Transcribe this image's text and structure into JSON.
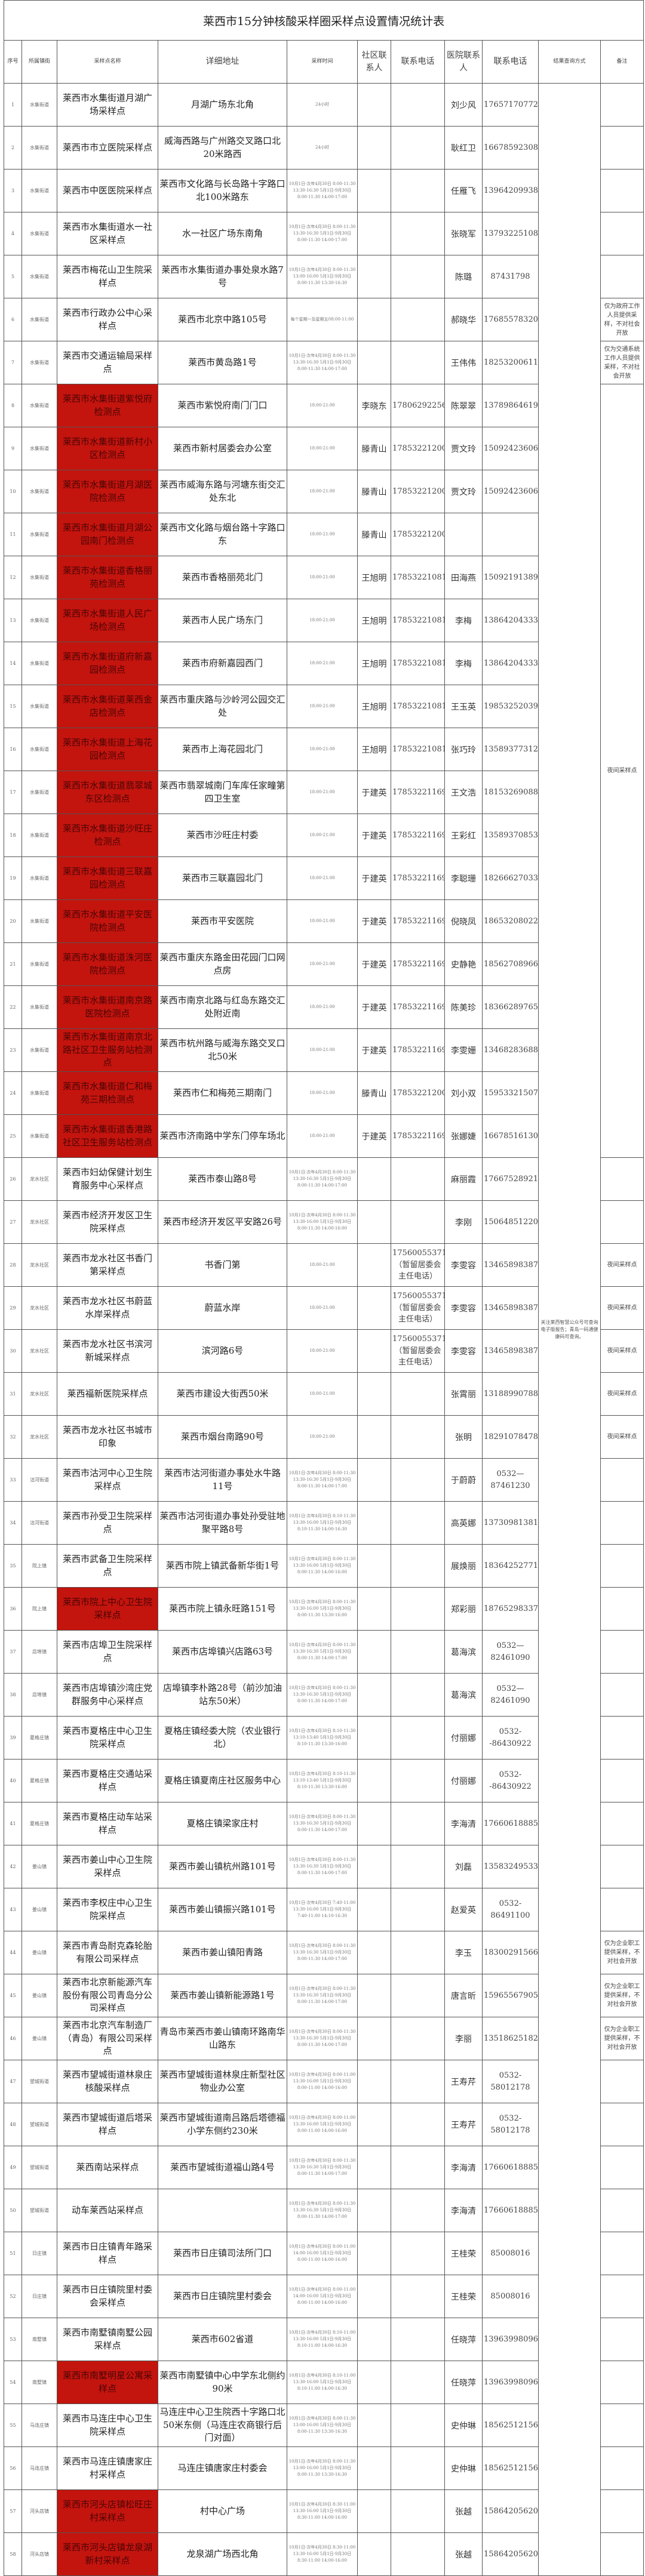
{
  "title": "莱西市15分钟核酸采样圈采样点设置情况统计表",
  "headers": [
    "序号",
    "所属镇街",
    "采样点名称",
    "详细地址",
    "采样时间",
    "社区联系人",
    "联系电话",
    "医院联系人",
    "联系电话",
    "结果查询方式",
    "备注"
  ],
  "colors": {
    "highlight_red": "#c4140e"
  },
  "query_method": "关注莱西智慧公众号可查询电子版报告；青岛一码通健康码可查询。",
  "remarks": [
    {
      "span": 1,
      "text": ""
    },
    {
      "span": 1,
      "text": ""
    },
    {
      "span": 1,
      "text": ""
    },
    {
      "span": 1,
      "text": ""
    },
    {
      "span": 1,
      "text": ""
    },
    {
      "span": 1,
      "text": "仅为政府工作人员提供采样，不对社会开放"
    },
    {
      "span": 1,
      "text": "仅为交通系统工作人员提供采样，不对社会开放"
    },
    {
      "span": 18,
      "text": "夜间采样点"
    },
    {
      "span": 1,
      "text": ""
    },
    {
      "span": 1,
      "text": ""
    },
    {
      "span": 1,
      "text": "夜间采样点"
    },
    {
      "span": 1,
      "text": "夜间采样点"
    },
    {
      "span": 1,
      "text": "夜间采样点"
    },
    {
      "span": 1,
      "text": "夜间采样点"
    },
    {
      "span": 1,
      "text": "夜间采样点"
    },
    {
      "span": 1,
      "text": ""
    },
    {
      "span": 1,
      "text": ""
    },
    {
      "span": 1,
      "text": ""
    },
    {
      "span": 1,
      "text": ""
    },
    {
      "span": 1,
      "text": ""
    },
    {
      "span": 1,
      "text": ""
    },
    {
      "span": 1,
      "text": ""
    },
    {
      "span": 1,
      "text": ""
    },
    {
      "span": 1,
      "text": ""
    },
    {
      "span": 1,
      "text": ""
    },
    {
      "span": 1,
      "text": ""
    },
    {
      "span": 1,
      "text": "仅为企业职工提供采样，不对社会开放"
    },
    {
      "span": 1,
      "text": "仅为企业职工提供采样，不对社会开放"
    },
    {
      "span": 1,
      "text": "仅为企业职工提供采样，不对社会开放"
    },
    {
      "span": 1,
      "text": ""
    },
    {
      "span": 1,
      "text": ""
    },
    {
      "span": 1,
      "text": ""
    },
    {
      "span": 1,
      "text": ""
    },
    {
      "span": 1,
      "text": ""
    },
    {
      "span": 1,
      "text": ""
    },
    {
      "span": 1,
      "text": ""
    },
    {
      "span": 1,
      "text": ""
    },
    {
      "span": 1,
      "text": ""
    },
    {
      "span": 1,
      "text": ""
    },
    {
      "span": 1,
      "text": ""
    },
    {
      "span": 1,
      "text": ""
    }
  ],
  "rows": [
    {
      "no": "1",
      "town": "水集街道",
      "name": "莱西市水集街道月湖广场采样点",
      "addr": "月湖广场东北角",
      "time": "24小时",
      "cc": "",
      "cphone": "",
      "hc": "刘少风",
      "hphone": "17657170772",
      "red": false
    },
    {
      "no": "2",
      "town": "水集街道",
      "name": "莱西市市立医院采样点",
      "addr": "威海西路与广州路交叉路口北20米路西",
      "time": "24小时",
      "cc": "",
      "cphone": "",
      "hc": "耿红卫",
      "hphone": "16678592308",
      "red": false
    },
    {
      "no": "3",
      "town": "水集街道",
      "name": "莱西市中医医院采样点",
      "addr": "莱西市文化路与长岛路十字路口北100米路东",
      "time": "10月1日-次年4月30日 8:00-11:30 13:30-16:30 5月1日-9月30日 8:00-11:30 14:00-17:00",
      "cc": "",
      "cphone": "",
      "hc": "任雁飞",
      "hphone": "13964209938",
      "red": false
    },
    {
      "no": "4",
      "town": "水集街道",
      "name": "莱西市水集街道水一社区采样点",
      "addr": "水一社区广场东南角",
      "time": "10月1日-次年4月30日 8:00-11:30 13:30-16:30 5月1日-9月30日 8:00-11:30 14:00-17:00",
      "cc": "",
      "cphone": "",
      "hc": "张晓军",
      "hphone": "13793225108",
      "red": false
    },
    {
      "no": "5",
      "town": "水集街道",
      "name": "莱西市梅花山卫生院采样点",
      "addr": "莱西市水集街道办事处泉水路7号",
      "time": "10月1日-次年4月30日 8:00-11:30 13:00-16:00 5月1日-9月30日 8:00-11:30 13:30-16:30",
      "cc": "",
      "cphone": "",
      "hc": "陈璐",
      "hphone": "87431798",
      "red": false
    },
    {
      "no": "6",
      "town": "水集街道",
      "name": "莱西市行政办公中心采样点",
      "addr": "莱西市北京中路105号",
      "time": "每个星期一及星期五08:00-11:00",
      "cc": "",
      "cphone": "",
      "hc": "郝晓华",
      "hphone": "17685578320",
      "red": false
    },
    {
      "no": "7",
      "town": "水集街道",
      "name": "莱西市交通运输局采样点",
      "addr": "莱西市黄岛路1号",
      "time": "10月1日-次年4月30日 8:00-11:30 13:30-16:30 5月1日-9月30日 8:00-11:30 14:00-17:00",
      "cc": "",
      "cphone": "",
      "hc": "王伟伟",
      "hphone": "18253200611",
      "red": false
    },
    {
      "no": "8",
      "town": "水集街道",
      "name": "莱西市水集街道紫悦府检测点",
      "addr": "莱西市紫悦府南门门口",
      "time": "18:00-21:00",
      "cc": "李晓东",
      "cphone": "17806292256",
      "hc": "陈翠翠",
      "hphone": "13789864619",
      "red": true
    },
    {
      "no": "9",
      "town": "水集街道",
      "name": "莱西市水集街道新村小区检测点",
      "addr": "莱西市新村居委会办公室",
      "time": "18:00-21:00",
      "cc": "滕青山",
      "cphone": "17853221200",
      "hc": "贾文玲",
      "hphone": "15092423606",
      "red": true
    },
    {
      "no": "10",
      "town": "水集街道",
      "name": "莱西市水集街道月湖医院检测点",
      "addr": "莱西市威海东路与河塘东街交汇处东北",
      "time": "18:00-21:00",
      "cc": "滕青山",
      "cphone": "17853221200",
      "hc": "贾文玲",
      "hphone": "15092423606",
      "red": true
    },
    {
      "no": "11",
      "town": "水集街道",
      "name": "莱西市水集街道月湖公园南门检测点",
      "addr": "莱西市文化路与烟台路十字路口东",
      "time": "18:00-21:00",
      "cc": "滕青山",
      "cphone": "17853221200",
      "hc": "",
      "hphone": "",
      "red": true
    },
    {
      "no": "12",
      "town": "水集街道",
      "name": "莱西市水集街道香格丽苑检测点",
      "addr": "莱西市香格丽苑北门",
      "time": "18:00-21:00",
      "cc": "王旭明",
      "cphone": "17853221081",
      "hc": "田海燕",
      "hphone": "15092191389",
      "red": true
    },
    {
      "no": "13",
      "town": "水集街道",
      "name": "莱西市水集街道人民广场检测点",
      "addr": "莱西市人民广场东门",
      "time": "18:00-21:00",
      "cc": "王旭明",
      "cphone": "17853221081",
      "hc": "李梅",
      "hphone": "13864204333",
      "red": true
    },
    {
      "no": "14",
      "town": "水集街道",
      "name": "莱西市水集街道府新嘉园检测点",
      "addr": "莱西市府新嘉园西门",
      "time": "18:00-21:00",
      "cc": "王旭明",
      "cphone": "17853221081",
      "hc": "李梅",
      "hphone": "13864204333",
      "red": true
    },
    {
      "no": "15",
      "town": "水集街道",
      "name": "莱西市水集街道莱西金店检测点",
      "addr": "莱西市重庆路与沙岭河公园交汇处",
      "time": "18:00-21:00",
      "cc": "王旭明",
      "cphone": "17853221081",
      "hc": "王玉英",
      "hphone": "19853252039",
      "red": true
    },
    {
      "no": "16",
      "town": "水集街道",
      "name": "莱西市水集街道上海花园检测点",
      "addr": "莱西市上海花园北门",
      "time": "18:00-21:00",
      "cc": "王旭明",
      "cphone": "17853221081",
      "hc": "张巧玲",
      "hphone": "13589377312",
      "red": true
    },
    {
      "no": "17",
      "town": "水集街道",
      "name": "莱西市水集街道翡翠城东区检测点",
      "addr": "莱西市翡翠城南门车库任家疃第四卫生室",
      "time": "18:00-21:00",
      "cc": "于建英",
      "cphone": "17853221169",
      "hc": "王文浩",
      "hphone": "18153269088",
      "red": true
    },
    {
      "no": "18",
      "town": "水集街道",
      "name": "莱西市水集街道沙旺庄检测点",
      "addr": "莱西市沙旺庄村委",
      "time": "18:00-21:00",
      "cc": "于建英",
      "cphone": "17853221169",
      "hc": "王彩红",
      "hphone": "13589370853",
      "red": true
    },
    {
      "no": "19",
      "town": "水集街道",
      "name": "莱西市水集街道三联嘉园检测点",
      "addr": "莱西市三联嘉园北门",
      "time": "18:00-21:00",
      "cc": "于建英",
      "cphone": "17853221169",
      "hc": "李聪珊",
      "hphone": "18266627033",
      "red": true
    },
    {
      "no": "20",
      "town": "水集街道",
      "name": "莱西市水集街道平安医院检测点",
      "addr": "莱西市平安医院",
      "time": "18:00-21:00",
      "cc": "于建英",
      "cphone": "17853221169",
      "hc": "倪晓凤",
      "hphone": "18653208022",
      "red": true
    },
    {
      "no": "21",
      "town": "水集街道",
      "name": "莱西市水集街道洙河医院检测点",
      "addr": "莱西市重庆东路金田花园门口网点房",
      "time": "18:00-21:00",
      "cc": "于建英",
      "cphone": "17853221169",
      "hc": "史静艳",
      "hphone": "18562708966",
      "red": true
    },
    {
      "no": "22",
      "town": "水集街道",
      "name": "莱西市水集街道南京路医院检测点",
      "addr": "莱西市南京北路与红岛东路交汇处附近南",
      "time": "18:00-21:00",
      "cc": "于建英",
      "cphone": "17853221169",
      "hc": "陈美珍",
      "hphone": "18366289765",
      "red": true
    },
    {
      "no": "23",
      "town": "水集街道",
      "name": "莱西市水集街道南京北路社区卫生服务站检测点",
      "addr": "莱西市杭州路与威海东路交叉口北50米",
      "time": "18:00-21:00",
      "cc": "于建英",
      "cphone": "17853221169",
      "hc": "李雯姗",
      "hphone": "13468283688",
      "red": true
    },
    {
      "no": "24",
      "town": "水集街道",
      "name": "莱西市水集街道仁和梅苑三期检测点",
      "addr": "莱西市仁和梅苑三期南门",
      "time": "18:00-21:00",
      "cc": "滕青山",
      "cphone": "17853221200",
      "hc": "刘小双",
      "hphone": "15953321507",
      "red": true
    },
    {
      "no": "25",
      "town": "水集街道",
      "name": "莱西市水集街道香港路社区卫生服务站检测点",
      "addr": "莱西市济南路中学东门停车场北",
      "time": "18:00-21:00",
      "cc": "于建英",
      "cphone": "17853221169",
      "hc": "张娜婕",
      "hphone": "16678516130",
      "red": true
    },
    {
      "no": "26",
      "town": "龙水社区",
      "name": "莱西市妇幼保健计划生育服务中心采样点",
      "addr": "莱西市泰山路8号",
      "time": "10月1日-次年4月30日 8:00-11:30 13:30-16:30 5月1日-9月30日 8:00-11:30 14:00-17:00",
      "cc": "",
      "cphone": "",
      "hc": "麻丽霞",
      "hphone": "17667528921",
      "red": false
    },
    {
      "no": "27",
      "town": "龙水社区",
      "name": "莱西市经济开发区卫生院采样点",
      "addr": "莱西市经济开发区平安路26号",
      "time": "10月1日-次年4月30日 8:00-11:30 13:30-16:00 5月1日-9月30日 8:00-11:30 14:00-16:00",
      "cc": "",
      "cphone": "",
      "hc": "李刚",
      "hphone": "15064851220",
      "red": false
    },
    {
      "no": "28",
      "town": "龙水社区",
      "name": "莱西市龙水社区书香门第采样点",
      "addr": "书香门第",
      "time": "18:00-21:00",
      "cc": "",
      "cphone": "17560055371（暂留居委会主任电话）",
      "hc": "李雯容",
      "hphone": "13465898387",
      "red": false
    },
    {
      "no": "29",
      "town": "龙水社区",
      "name": "莱西市龙水社区书蔚蓝水岸采样点",
      "addr": "蔚蓝水岸",
      "time": "18:00-21:00",
      "cc": "",
      "cphone": "17560055371（暂留居委会主任电话）",
      "hc": "李雯容",
      "hphone": "13465898387",
      "red": false
    },
    {
      "no": "30",
      "town": "龙水社区",
      "name": "莱西市龙水社区书滨河新城采样点",
      "addr": "滨河路6号",
      "time": "18:00-21:00",
      "cc": "",
      "cphone": "17560055371（暂留居委会主任电话）",
      "hc": "李雯容",
      "hphone": "13465898387",
      "red": false
    },
    {
      "no": "31",
      "town": "龙水社区",
      "name": "莱西福新医院采样点",
      "addr": "莱西市建设大街西50米",
      "time": "18:00-21:00",
      "cc": "",
      "cphone": "",
      "hc": "张霄丽",
      "hphone": "13188990788",
      "red": false
    },
    {
      "no": "32",
      "town": "龙水社区",
      "name": "莱西市龙水社区书城市印象",
      "addr": "莱西市烟台南路90号",
      "time": "18:00-21:00",
      "cc": "",
      "cphone": "",
      "hc": "张明",
      "hphone": "18291078478",
      "red": false
    },
    {
      "no": "33",
      "town": "沽河街道",
      "name": "莱西市沽河中心卫生院采样点",
      "addr": "莱西市沽河街道办事处水牛路11号",
      "time": "10月1日-次年4月30日 8:00-11:30 13:30-16:30 5月1日-9月30日 8:00-11:30 14:00-17:00",
      "cc": "",
      "cphone": "",
      "hc": "于蔚蔚",
      "hphone": "0532—87461230",
      "red": false
    },
    {
      "no": "34",
      "town": "沽河街道",
      "name": "莱西市孙受卫生院采样点",
      "addr": "莱西市沽河街道办事处孙受驻地聚平路8号",
      "time": "10月1日-次年4月30日 8:10-11:30 13:30-16:00 5月1日-9月30日 8:10-11:30 14:00-16:30",
      "cc": "",
      "cphone": "",
      "hc": "高英娜",
      "hphone": "13730981381",
      "red": false
    },
    {
      "no": "35",
      "town": "院上镇",
      "name": "莱西市武备卫生院采样点",
      "addr": "莱西市院上镇武备新华街1号",
      "time": "10月1日-次年4月30日 8:00-11:30 13:30-16:00 5月1日-9月30日 8:00-11:30 14:00-16:00",
      "cc": "",
      "cphone": "",
      "hc": "展焕丽",
      "hphone": "18364252771",
      "red": false
    },
    {
      "no": "36",
      "town": "院上镇",
      "name": "莱西市院上中心卫生院采样点",
      "addr": "莱西市院上镇永旺路151号",
      "time": "10月1日-次年4月30日 8:00-11:30 13:30-16:00 5月1日-9月30日 8:00-11:30 13:30-16:00",
      "cc": "",
      "cphone": "",
      "hc": "郑彩丽",
      "hphone": "18765298337",
      "red": true
    },
    {
      "no": "37",
      "town": "店埠镇",
      "name": "莱西市店埠卫生院采样点",
      "addr": "莱西市店埠镇兴店路63号",
      "time": "10月1日-次年4月30日 8:00-11:30 13:30-16:30 5月1日-9月30日 8:00-11:30 14:00-17:00",
      "cc": "",
      "cphone": "",
      "hc": "葛海滨",
      "hphone": "0532—82461090",
      "red": false
    },
    {
      "no": "38",
      "town": "店埠镇",
      "name": "莱西市店埠镇沙湾庄党群服务中心采样点",
      "addr": "店埠镇李朴路28号（前沙加油站东50米）",
      "time": "10月1日-次年4月30日 8:00-11:30 13:30-16:30 5月1日-9月30日 8:00-11:30 14:00-17:00",
      "cc": "",
      "cphone": "",
      "hc": "葛海滨",
      "hphone": "0532—82461090",
      "red": false
    },
    {
      "no": "39",
      "town": "夏格庄镇",
      "name": "莱西市夏格庄中心卫生院采样点",
      "addr": "夏格庄镇经委大院（农业银行北）",
      "time": "10月1日-次年4月30日 8:10-11:30 13:10-13:40 5月1日-9月30日 8:10-11:30 13:30-16:00",
      "cc": "",
      "cphone": "",
      "hc": "付丽娜",
      "hphone": "0532--86430922",
      "red": false
    },
    {
      "no": "40",
      "town": "夏格庄镇",
      "name": "莱西市夏格庄交通站采样点",
      "addr": "夏格庄镇夏南庄社区服务中心",
      "time": "10月1日-次年4月30日 8:10-11:30 13:10-13:40 5月1日-9月30日 8:10-11:30 13:30-16:00",
      "cc": "",
      "cphone": "",
      "hc": "付丽娜",
      "hphone": "0532--86430922",
      "red": false
    },
    {
      "no": "41",
      "town": "夏格庄镇",
      "name": "莱西市夏格庄动车站采样点",
      "addr": "夏格庄镇梁家庄村",
      "time": "10月1日-次年4月30日 8:00-11:30 13:30-16:30 5月1日-9月30日 8:00-11:30 14:00-17:00",
      "cc": "",
      "cphone": "",
      "hc": "李海清",
      "hphone": "17660618885",
      "red": false
    },
    {
      "no": "42",
      "town": "姜山镇",
      "name": "莱西市姜山中心卫生院采样点",
      "addr": "莱西市姜山镇杭州路101号",
      "time": "10月1日-次年4月30日 8:00-11:30 13:30-16:30 5月1日-9月30日 8:00-11:30 14:00-17:00",
      "cc": "",
      "cphone": "",
      "hc": "刘磊",
      "hphone": "13583249533",
      "red": false
    },
    {
      "no": "43",
      "town": "姜山镇",
      "name": "莱西市李权庄中心卫生院采样点",
      "addr": "莱西市姜山镇振兴路101号",
      "time": "10月1日-次年4月30日 7:40-11:00 13:30-16:00 5月1日-9月30日 7:40-11:00 14:10-16:30",
      "cc": "",
      "cphone": "",
      "hc": "赵爱英",
      "hphone": "0532-86491100",
      "red": false
    },
    {
      "no": "44",
      "town": "姜山镇",
      "name": "莱西市青岛耐克森轮胎有限公司采样点",
      "addr": "莱西市姜山镇阳青路",
      "time": "10月1日-次年4月30日 8:00-11:30 13:30-16:30 5月1日-9月30日 8:00-11:30 14:00-17:00",
      "cc": "",
      "cphone": "",
      "hc": "李玉",
      "hphone": "18300291566",
      "red": false
    },
    {
      "no": "45",
      "town": "姜山镇",
      "name": "莱西市北京新能源汽车股份有限公司青岛分公司采样点",
      "addr": "莱西市姜山镇新能源路1号",
      "time": "10月1日-次年4月30日 8:00-11:30 13:30-16:30 5月1日-9月30日 8:00-11:30 14:00-17:00",
      "cc": "",
      "cphone": "",
      "hc": "唐言昕",
      "hphone": "15965567905",
      "red": false
    },
    {
      "no": "46",
      "town": "姜山镇",
      "name": "莱西市北京汽车制造厂（青岛）有限公司采样点",
      "addr": "青岛市莱西市姜山镇南环路南华山路东",
      "time": "10月1日-次年4月30日 8:00-11:30 13:30-16:30 5月1日-9月30日 8:00-11:30 14:00-17:00",
      "cc": "",
      "cphone": "",
      "hc": "李丽",
      "hphone": "13518625182",
      "red": false
    },
    {
      "no": "47",
      "town": "望城街道",
      "name": "莱西市望城街道林泉庄核酸采样点",
      "addr": "莱西市望城街道林泉庄新型社区物业办公室",
      "time": "10月1日-次年4月30日 8:00-11:00 13:30-16:00 5月1日-9月30日 8:00-11:00 14:00-16:00",
      "cc": "",
      "cphone": "",
      "hc": "王寿芹",
      "hphone": "0532-58012178",
      "red": false
    },
    {
      "no": "48",
      "town": "望城街道",
      "name": "莱西市望城街道后塔采样点",
      "addr": "莱西市望城街道南吕路后塔德福小学东侧约230米",
      "time": "10月1日-次年4月30日 8:00-11:00 13:30-16:00 5月1日-9月30日 8:00-11:00 14:00-16:00",
      "cc": "",
      "cphone": "",
      "hc": "王寿芹",
      "hphone": "0532-58012178",
      "red": false
    },
    {
      "no": "49",
      "town": "望城街道",
      "name": "莱西南站采样点",
      "addr": "莱西市望城街道福山路4号",
      "time": "10月1日-次年4月30日 8:00-11:30 13:30-16:30 5月1日-9月30日 8:00-11:30 14:00-17:00",
      "cc": "",
      "cphone": "",
      "hc": "李海清",
      "hphone": "17660618885",
      "red": false
    },
    {
      "no": "50",
      "town": "望城街道",
      "name": "动车莱西站采样点",
      "addr": "",
      "time": "10月1日-次年4月30日 8:00-11:30 13:30-16:30 5月1日-9月30日 8:00-11:30 14:00-17:00",
      "cc": "",
      "cphone": "",
      "hc": "李海清",
      "hphone": "17660618885",
      "red": false
    },
    {
      "no": "51",
      "town": "日庄镇",
      "name": "莱西市日庄镇青年路采样点",
      "addr": "莱西市日庄镇司法所门口",
      "time": "10月1日-次年4月30日 8:00-11:00 14:00-16:00 5月1日-9月30日 8:00-11:00 14:00-16:00",
      "cc": "",
      "cphone": "",
      "hc": "王桂荣",
      "hphone": "85008016",
      "red": false
    },
    {
      "no": "52",
      "town": "日庄镇",
      "name": "莱西市日庄镇院里村委会采样点",
      "addr": "莱西市日庄镇院里村委会",
      "time": "10月1日-次年4月30日 8:00-11:00 14:00-16:00 5月1日-9月30日 8:00-11:00 14:00-16:00",
      "cc": "",
      "cphone": "",
      "hc": "王桂荣",
      "hphone": "85008016",
      "red": false
    },
    {
      "no": "53",
      "town": "南墅镇",
      "name": "莱西市南墅镇南墅公园采样点",
      "addr": "莱西市602省道",
      "time": "10月1日-次年4月30日 8:10-11:00 13:30-16:00 5月1日-9月30日 8:10-11:00 14:00-16:30",
      "cc": "",
      "cphone": "",
      "hc": "任晓萍",
      "hphone": "13963998096",
      "red": false
    },
    {
      "no": "54",
      "town": "南墅镇",
      "name": "莱西市南墅明星公寓采样点",
      "addr": "莱西市南墅镇中心中学东北侧约90米",
      "time": "10月1日-次年4月30日 8:10-11:00 13:30-16:00 5月1日-9月30日 8:10-11:00 14:00-16:30",
      "cc": "",
      "cphone": "",
      "hc": "任晓萍",
      "hphone": "13963998096",
      "red": true
    },
    {
      "no": "55",
      "town": "马连庄镇",
      "name": "莱西市马连庄中心卫生院采样点",
      "addr": "马连庄中心卫生院西十字路口北50米东侧（马连庄农商银行后门对面）",
      "time": "10月1日-次年4月30日 8:00-11:30 13:00-16:00 5月1日-9月30日 8:00-11:30 13:30-16:30",
      "cc": "",
      "cphone": "",
      "hc": "史仲琳",
      "hphone": "18562512156",
      "red": false
    },
    {
      "no": "56",
      "town": "马连庄镇",
      "name": "莱西市马连庄镇唐家庄村采样点",
      "addr": "马连庄镇唐家庄村委会",
      "time": "10月1日-次年4月30日 8:00-11:30 13:00-16:00 5月1日-9月30日 8:00-11:30 13:30-16:30",
      "cc": "",
      "cphone": "",
      "hc": "史仲琳",
      "hphone": "18562512156",
      "red": false
    },
    {
      "no": "57",
      "town": "河头店镇",
      "name": "莱西市河头店镇松旺庄村采样点",
      "addr": "村中心广场",
      "time": "10月1日-次年4月30日 8:30-11:00 13:30-16:00 5月1日-9月30日 8:30-11:00 14:00-16:00",
      "cc": "",
      "cphone": "",
      "hc": "张越",
      "hphone": "15864205620",
      "red": true
    },
    {
      "no": "58",
      "town": "河头店镇",
      "name": "莱西市河头店镇龙泉湖新村采样点",
      "addr": "龙泉湖广场西北角",
      "time": "10月1日-次年4月30日 8:30-11:00 13:30-16:00 5月1日-9月30日 8:30-11:00 14:00-16:00",
      "cc": "",
      "cphone": "",
      "hc": "张越",
      "hphone": "15864205620",
      "red": true
    }
  ]
}
